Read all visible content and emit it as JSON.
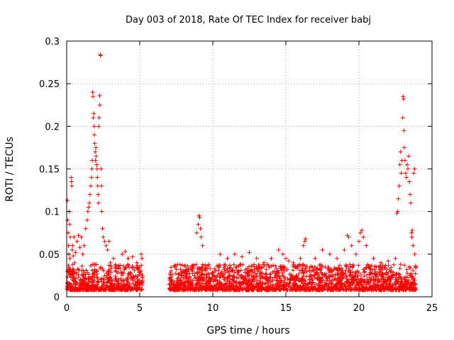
{
  "chart_data": {
    "type": "scatter",
    "title": "Day 003 of 2018, Rate Of TEC Index for receiver babj",
    "xlabel": "GPS time / hours",
    "ylabel": "ROTI / TECUs",
    "xlim": [
      0,
      25
    ],
    "ylim": [
      0,
      0.3
    ],
    "xticks": [
      0,
      5,
      10,
      15,
      20,
      25
    ],
    "xtick_labels": [
      "0",
      "5",
      "10",
      "15",
      "20",
      "25"
    ],
    "yticks": [
      0,
      0.05,
      0.1,
      0.15,
      0.2,
      0.25,
      0.3
    ],
    "ytick_labels": [
      "0",
      "0.05",
      "0.1",
      "0.15",
      "0.2",
      "0.25",
      "0.3"
    ],
    "grid": true,
    "marker": "+",
    "series": [
      {
        "name": "ROTI",
        "color": "#ff0000",
        "points": [
          [
            0.05,
            0.113
          ],
          [
            0.08,
            0.09
          ],
          [
            0.1,
            0.075
          ],
          [
            0.12,
            0.06
          ],
          [
            0.15,
            0.05
          ],
          [
            0.18,
            0.1
          ],
          [
            0.2,
            0.085
          ],
          [
            0.22,
            0.045
          ],
          [
            0.25,
            0.07
          ],
          [
            0.3,
            0.14
          ],
          [
            0.33,
            0.135
          ],
          [
            0.35,
            0.13
          ],
          [
            0.38,
            0.055
          ],
          [
            0.4,
            0.06
          ],
          [
            0.45,
            0.048
          ],
          [
            0.5,
            0.07
          ],
          [
            0.55,
            0.04
          ],
          [
            0.6,
            0.052
          ],
          [
            0.7,
            0.065
          ],
          [
            0.8,
            0.072
          ],
          [
            0.9,
            0.058
          ],
          [
            1.0,
            0.07
          ],
          [
            1.1,
            0.05
          ],
          [
            1.2,
            0.06
          ],
          [
            1.3,
            0.08
          ],
          [
            1.4,
            0.09
          ],
          [
            1.45,
            0.1
          ],
          [
            1.5,
            0.105
          ],
          [
            1.55,
            0.11
          ],
          [
            1.6,
            0.12
          ],
          [
            1.65,
            0.13
          ],
          [
            1.7,
            0.14
          ],
          [
            1.72,
            0.15
          ],
          [
            1.75,
            0.16
          ],
          [
            1.78,
            0.24
          ],
          [
            1.8,
            0.235
          ],
          [
            1.82,
            0.21
          ],
          [
            1.85,
            0.215
          ],
          [
            1.88,
            0.2
          ],
          [
            1.9,
            0.19
          ],
          [
            1.92,
            0.18
          ],
          [
            1.95,
            0.17
          ],
          [
            1.97,
            0.16
          ],
          [
            2.0,
            0.175
          ],
          [
            2.02,
            0.165
          ],
          [
            2.05,
            0.155
          ],
          [
            2.08,
            0.15
          ],
          [
            2.1,
            0.14
          ],
          [
            2.12,
            0.13
          ],
          [
            2.15,
            0.12
          ],
          [
            2.18,
            0.11
          ],
          [
            2.2,
            0.2
          ],
          [
            2.22,
            0.21
          ],
          [
            2.25,
            0.236
          ],
          [
            2.27,
            0.225
          ],
          [
            2.3,
            0.284
          ],
          [
            2.32,
            0.283
          ],
          [
            2.35,
            0.15
          ],
          [
            2.38,
            0.13
          ],
          [
            2.4,
            0.1
          ],
          [
            2.45,
            0.08
          ],
          [
            2.5,
            0.07
          ],
          [
            2.6,
            0.065
          ],
          [
            2.7,
            0.06
          ],
          [
            2.8,
            0.055
          ],
          [
            2.9,
            0.065
          ],
          [
            3.0,
            0.04
          ],
          [
            3.2,
            0.045
          ],
          [
            3.5,
            0.035
          ],
          [
            3.8,
            0.05
          ],
          [
            4.0,
            0.053
          ],
          [
            4.2,
            0.045
          ],
          [
            4.5,
            0.047
          ],
          [
            4.8,
            0.04
          ],
          [
            5.0,
            0.035
          ],
          [
            5.1,
            0.05
          ],
          [
            5.15,
            0.045
          ],
          [
            8.9,
            0.075
          ],
          [
            9.0,
            0.085
          ],
          [
            9.05,
            0.095
          ],
          [
            9.1,
            0.093
          ],
          [
            9.15,
            0.08
          ],
          [
            9.2,
            0.07
          ],
          [
            9.3,
            0.06
          ],
          [
            10.5,
            0.05
          ],
          [
            11.0,
            0.045
          ],
          [
            11.5,
            0.05
          ],
          [
            12.0,
            0.047
          ],
          [
            12.5,
            0.052
          ],
          [
            13.0,
            0.045
          ],
          [
            13.5,
            0.04
          ],
          [
            14.0,
            0.045
          ],
          [
            14.5,
            0.055
          ],
          [
            14.8,
            0.05
          ],
          [
            15.0,
            0.045
          ],
          [
            15.2,
            0.042
          ],
          [
            15.5,
            0.04
          ],
          [
            16.0,
            0.045
          ],
          [
            16.2,
            0.06
          ],
          [
            16.3,
            0.065
          ],
          [
            16.35,
            0.068
          ],
          [
            17.0,
            0.045
          ],
          [
            17.5,
            0.055
          ],
          [
            18.0,
            0.05
          ],
          [
            18.5,
            0.045
          ],
          [
            19.0,
            0.055
          ],
          [
            19.2,
            0.072
          ],
          [
            19.3,
            0.07
          ],
          [
            19.5,
            0.06
          ],
          [
            19.8,
            0.05
          ],
          [
            20.0,
            0.065
          ],
          [
            20.1,
            0.075
          ],
          [
            20.2,
            0.078
          ],
          [
            20.3,
            0.07
          ],
          [
            20.5,
            0.06
          ],
          [
            21.0,
            0.045
          ],
          [
            21.5,
            0.04
          ],
          [
            22.0,
            0.042
          ],
          [
            22.5,
            0.045
          ],
          [
            22.6,
            0.098
          ],
          [
            22.65,
            0.1
          ],
          [
            22.7,
            0.115
          ],
          [
            22.75,
            0.13
          ],
          [
            22.8,
            0.155
          ],
          [
            22.85,
            0.17
          ],
          [
            22.9,
            0.145
          ],
          [
            22.95,
            0.16
          ],
          [
            23.0,
            0.21
          ],
          [
            23.02,
            0.235
          ],
          [
            23.05,
            0.232
          ],
          [
            23.08,
            0.195
          ],
          [
            23.1,
            0.175
          ],
          [
            23.15,
            0.16
          ],
          [
            23.2,
            0.145
          ],
          [
            23.25,
            0.14
          ],
          [
            23.3,
            0.155
          ],
          [
            23.35,
            0.15
          ],
          [
            23.4,
            0.165
          ],
          [
            23.45,
            0.135
          ],
          [
            23.5,
            0.12
          ],
          [
            23.55,
            0.11
          ],
          [
            23.6,
            0.075
          ],
          [
            23.62,
            0.07
          ],
          [
            23.65,
            0.078
          ],
          [
            23.7,
            0.06
          ],
          [
            23.75,
            0.145
          ],
          [
            23.8,
            0.15
          ],
          [
            23.82,
            0.05
          ]
        ]
      }
    ]
  }
}
